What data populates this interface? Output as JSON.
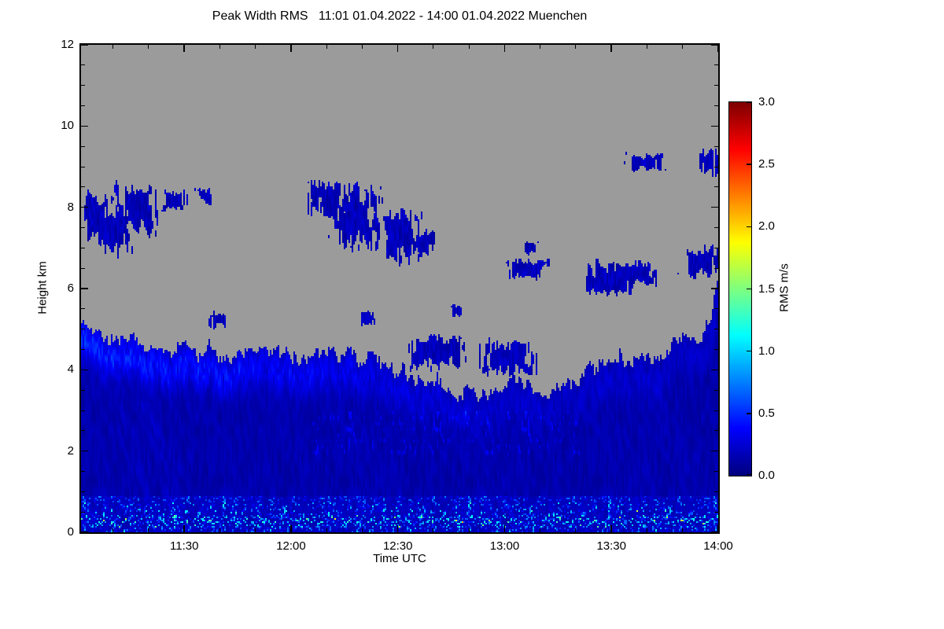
{
  "title": "Peak Width RMS   11:01 01.04.2022 - 14:00 01.04.2022 Muenchen",
  "axes": {
    "x": {
      "label": "Time UTC",
      "start": "11:01",
      "end": "14:00",
      "ticks": [
        {
          "label": "11:30",
          "t": 29
        },
        {
          "label": "12:00",
          "t": 59
        },
        {
          "label": "12:30",
          "t": 89
        },
        {
          "label": "13:00",
          "t": 119
        },
        {
          "label": "13:30",
          "t": 149
        },
        {
          "label": "14:00",
          "t": 179
        }
      ],
      "minor_t": [
        9,
        19,
        39,
        49,
        69,
        79,
        99,
        109,
        129,
        139,
        159,
        169
      ]
    },
    "y": {
      "label": "Height km",
      "min": 0,
      "max": 12,
      "ticks": [
        {
          "label": "0",
          "v": 0
        },
        {
          "label": "2",
          "v": 2
        },
        {
          "label": "4",
          "v": 4
        },
        {
          "label": "6",
          "v": 6
        },
        {
          "label": "8",
          "v": 8
        },
        {
          "label": "10",
          "v": 10
        },
        {
          "label": "12",
          "v": 12
        }
      ]
    }
  },
  "colorbar": {
    "label": "RMS m/s",
    "min": 0,
    "max": 3,
    "colormap": "jet",
    "ticks": [
      {
        "label": "0.0",
        "v": 0
      },
      {
        "label": "0.5",
        "v": 0.5
      },
      {
        "label": "1.0",
        "v": 1
      },
      {
        "label": "1.5",
        "v": 1.5
      },
      {
        "label": "2.0",
        "v": 2
      },
      {
        "label": "2.5",
        "v": 2.5
      },
      {
        "label": "3.0",
        "v": 3
      }
    ]
  },
  "chart_data": {
    "type": "heatmap",
    "title": "Peak Width RMS   11:01 01.04.2022 - 14:00 01.04.2022 Muenchen",
    "station": "Muenchen",
    "date": "01.04.2022",
    "xlabel": "Time UTC",
    "ylabel": "Height km",
    "x_start_time": "11:01",
    "x_end_time": "14:00",
    "x_range_minutes": [
      0,
      179
    ],
    "ylim": [
      0,
      12
    ],
    "value_label": "RMS m/s",
    "value_range": [
      0,
      3
    ],
    "colormap": "jet",
    "no_data_color": "#9b9b9b",
    "background_value_range": [
      0.0,
      0.5
    ],
    "surface_speckle_max_rms": 1.3,
    "layer_top_km": {
      "t_minutes": [
        0,
        6,
        12,
        20,
        29,
        40,
        50,
        59,
        68,
        75,
        82,
        89,
        96,
        104,
        112,
        119,
        126,
        133,
        140,
        147,
        154,
        161,
        168,
        173,
        177,
        179
      ],
      "height_km": [
        5.2,
        5.0,
        4.8,
        4.55,
        4.45,
        4.35,
        4.4,
        4.3,
        4.45,
        4.4,
        4.2,
        3.8,
        3.6,
        3.55,
        3.5,
        3.6,
        3.55,
        3.45,
        3.8,
        4.1,
        4.3,
        4.4,
        4.6,
        4.8,
        5.2,
        6.5
      ]
    },
    "cloud_patches_format": "[t0_min, t1_min, h0_km, h1_km]",
    "cloud_patches": [
      [
        1,
        8,
        7.2,
        8.3
      ],
      [
        4,
        14,
        6.9,
        8.0
      ],
      [
        10,
        21,
        7.4,
        8.5
      ],
      [
        24,
        29,
        8.0,
        8.35
      ],
      [
        33,
        36,
        8.15,
        8.4
      ],
      [
        64,
        75,
        7.8,
        8.6
      ],
      [
        71,
        84,
        7.0,
        8.5
      ],
      [
        84,
        95,
        6.7,
        7.8
      ],
      [
        92,
        100,
        6.9,
        7.4
      ],
      [
        119,
        131,
        6.3,
        6.65
      ],
      [
        124,
        128,
        6.9,
        7.1
      ],
      [
        141,
        154,
        5.9,
        6.6
      ],
      [
        149,
        161,
        6.15,
        6.6
      ],
      [
        154,
        164,
        8.95,
        9.25
      ],
      [
        174,
        179,
        8.85,
        9.35
      ],
      [
        169,
        179,
        6.35,
        7.0
      ],
      [
        92,
        107,
        4.1,
        4.75
      ],
      [
        113,
        127,
        3.95,
        4.65
      ],
      [
        36,
        41,
        5.1,
        5.35
      ],
      [
        79,
        82,
        5.15,
        5.35
      ],
      [
        104,
        107,
        5.35,
        5.55
      ]
    ],
    "description": "Time-height heatmap of Doppler peak width RMS (jet colormap, 0-3 m/s). Continuous boundary-layer signal of dark blue (RMS ~0-0.5 m/s) below roughly 3.5-5 km with bright cyan speckles near the surface; detached dark-blue cloud patches between ~6 and 9.3 km; grey indicates no data."
  }
}
